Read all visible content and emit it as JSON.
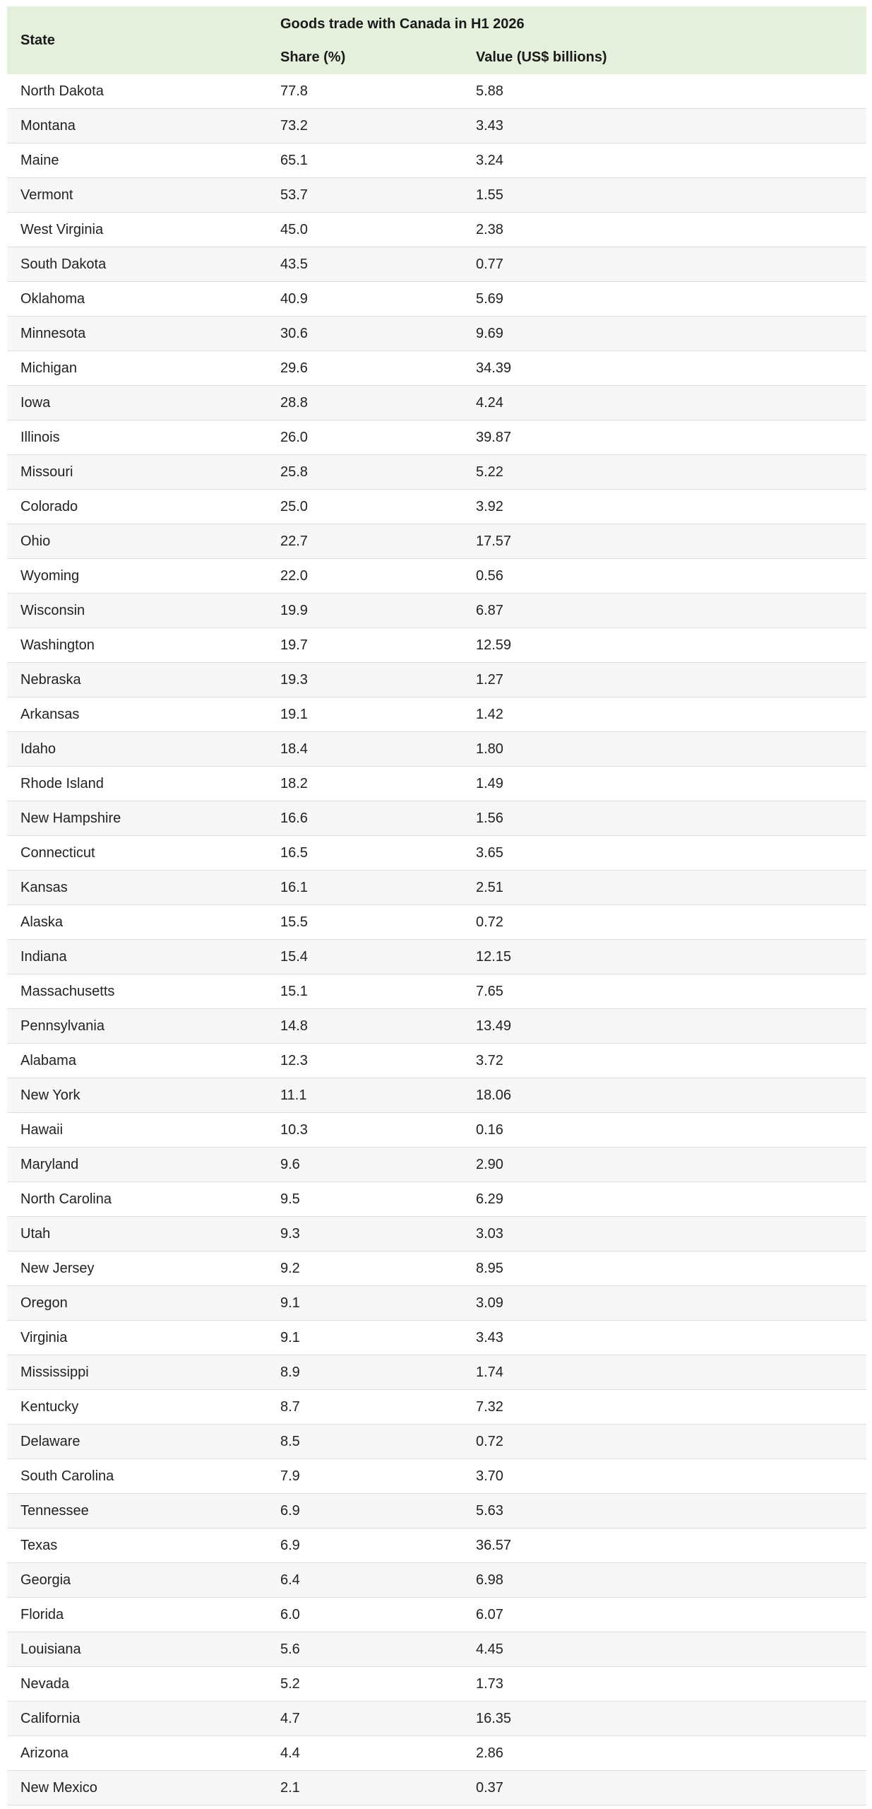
{
  "table": {
    "headers": {
      "state": "State",
      "group": "Goods trade with Canada in H1 2026",
      "share": "Share (%)",
      "value": "Value (US$ billions)"
    },
    "rows": [
      {
        "state": "North Dakota",
        "share": "77.8",
        "value": "5.88"
      },
      {
        "state": "Montana",
        "share": "73.2",
        "value": "3.43"
      },
      {
        "state": "Maine",
        "share": "65.1",
        "value": "3.24"
      },
      {
        "state": "Vermont",
        "share": "53.7",
        "value": "1.55"
      },
      {
        "state": "West Virginia",
        "share": "45.0",
        "value": "2.38"
      },
      {
        "state": "South Dakota",
        "share": "43.5",
        "value": "0.77"
      },
      {
        "state": "Oklahoma",
        "share": "40.9",
        "value": "5.69"
      },
      {
        "state": "Minnesota",
        "share": "30.6",
        "value": "9.69"
      },
      {
        "state": "Michigan",
        "share": "29.6",
        "value": "34.39"
      },
      {
        "state": "Iowa",
        "share": "28.8",
        "value": "4.24"
      },
      {
        "state": "Illinois",
        "share": "26.0",
        "value": "39.87"
      },
      {
        "state": "Missouri",
        "share": "25.8",
        "value": "5.22"
      },
      {
        "state": "Colorado",
        "share": "25.0",
        "value": "3.92"
      },
      {
        "state": "Ohio",
        "share": "22.7",
        "value": "17.57"
      },
      {
        "state": "Wyoming",
        "share": "22.0",
        "value": "0.56"
      },
      {
        "state": "Wisconsin",
        "share": "19.9",
        "value": "6.87"
      },
      {
        "state": "Washington",
        "share": "19.7",
        "value": "12.59"
      },
      {
        "state": "Nebraska",
        "share": "19.3",
        "value": "1.27"
      },
      {
        "state": "Arkansas",
        "share": "19.1",
        "value": "1.42"
      },
      {
        "state": "Idaho",
        "share": "18.4",
        "value": "1.80"
      },
      {
        "state": "Rhode Island",
        "share": "18.2",
        "value": "1.49"
      },
      {
        "state": "New Hampshire",
        "share": "16.6",
        "value": "1.56"
      },
      {
        "state": "Connecticut",
        "share": "16.5",
        "value": "3.65"
      },
      {
        "state": "Kansas",
        "share": "16.1",
        "value": "2.51"
      },
      {
        "state": "Alaska",
        "share": "15.5",
        "value": "0.72"
      },
      {
        "state": "Indiana",
        "share": "15.4",
        "value": "12.15"
      },
      {
        "state": "Massachusetts",
        "share": "15.1",
        "value": "7.65"
      },
      {
        "state": "Pennsylvania",
        "share": "14.8",
        "value": "13.49"
      },
      {
        "state": "Alabama",
        "share": "12.3",
        "value": "3.72"
      },
      {
        "state": "New York",
        "share": "11.1",
        "value": "18.06"
      },
      {
        "state": "Hawaii",
        "share": "10.3",
        "value": "0.16"
      },
      {
        "state": "Maryland",
        "share": "9.6",
        "value": "2.90"
      },
      {
        "state": "North Carolina",
        "share": "9.5",
        "value": "6.29"
      },
      {
        "state": "Utah",
        "share": "9.3",
        "value": "3.03"
      },
      {
        "state": "New Jersey",
        "share": "9.2",
        "value": "8.95"
      },
      {
        "state": "Oregon",
        "share": "9.1",
        "value": "3.09"
      },
      {
        "state": "Virginia",
        "share": "9.1",
        "value": "3.43"
      },
      {
        "state": "Mississippi",
        "share": "8.9",
        "value": "1.74"
      },
      {
        "state": "Kentucky",
        "share": "8.7",
        "value": "7.32"
      },
      {
        "state": "Delaware",
        "share": "8.5",
        "value": "0.72"
      },
      {
        "state": "South Carolina",
        "share": "7.9",
        "value": "3.70"
      },
      {
        "state": "Tennessee",
        "share": "6.9",
        "value": "5.63"
      },
      {
        "state": "Texas",
        "share": "6.9",
        "value": "36.57"
      },
      {
        "state": "Georgia",
        "share": "6.4",
        "value": "6.98"
      },
      {
        "state": "Florida",
        "share": "6.0",
        "value": "6.07"
      },
      {
        "state": "Louisiana",
        "share": "5.6",
        "value": "4.45"
      },
      {
        "state": "Nevada",
        "share": "5.2",
        "value": "1.73"
      },
      {
        "state": "California",
        "share": "4.7",
        "value": "16.35"
      },
      {
        "state": "Arizona",
        "share": "4.4",
        "value": "2.86"
      },
      {
        "state": "New Mexico",
        "share": "2.1",
        "value": "0.37"
      }
    ]
  },
  "colors": {
    "header_background": "#e4efdc",
    "row_stripe": "#f7f7f7",
    "row_border": "#dedede"
  }
}
